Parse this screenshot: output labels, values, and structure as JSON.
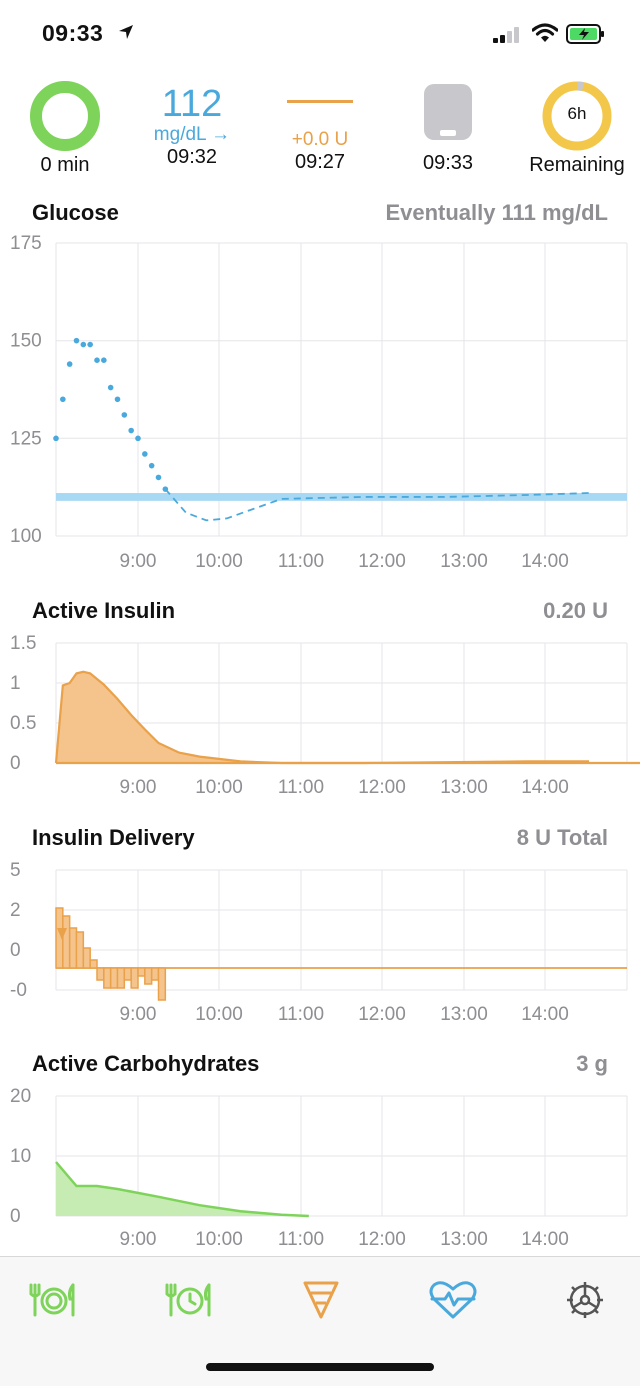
{
  "status": {
    "time": "09:33"
  },
  "hud": {
    "loop_label": "0 min",
    "glucose": "112",
    "glucose_unit": "mg/dL →",
    "glucose_time": "09:32",
    "basal_delta": "+0.0 U",
    "basal_time": "09:27",
    "pump_time": "09:33",
    "reservoir_label": "6h",
    "reservoir_caption": "Remaining"
  },
  "charts": {
    "glucose": {
      "title": "Glucose",
      "value": "Eventually 111 mg/dL"
    },
    "insulin": {
      "title": "Active Insulin",
      "value": "0.20 U"
    },
    "delivery": {
      "title": "Insulin Delivery",
      "value": "8 U Total"
    },
    "carbs": {
      "title": "Active Carbohydrates",
      "value": "3 g"
    }
  },
  "chart_data": [
    {
      "type": "scatter",
      "title": "Glucose",
      "x_ticks": [
        "9:00",
        "10:00",
        "11:00",
        "12:00",
        "13:00",
        "14:00"
      ],
      "y_ticks": [
        "175",
        "150",
        "125",
        "100"
      ],
      "ylim": [
        100,
        175
      ],
      "target_range": [
        109,
        111
      ],
      "series": [
        {
          "x": [
            "08:15",
            "08:20",
            "08:25",
            "08:30",
            "08:35",
            "08:40",
            "08:45",
            "08:50",
            "08:55",
            "09:00",
            "09:05",
            "09:10",
            "09:15",
            "09:20",
            "09:25",
            "09:30",
            "09:35"
          ],
          "values": [
            125,
            135,
            144,
            150,
            149,
            149,
            145,
            145,
            138,
            135,
            131,
            127,
            125,
            121,
            118,
            115,
            112
          ]
        },
        {
          "x": [
            "09:35",
            "09:50",
            "10:05",
            "10:20",
            "10:40",
            "11:00",
            "12:00",
            "13:00",
            "14:00",
            "14:45"
          ],
          "values": [
            112,
            106,
            104,
            104.5,
            107,
            109.5,
            110,
            110,
            110.5,
            111
          ]
        }
      ]
    },
    {
      "type": "area",
      "title": "Active Insulin",
      "x_ticks": [
        "9:00",
        "10:00",
        "11:00",
        "12:00",
        "13:00",
        "14:00"
      ],
      "y_ticks": [
        "1.5",
        "1",
        "0.5",
        "0"
      ],
      "ylim": [
        0,
        1.5
      ],
      "x": [
        "08:15",
        "08:20",
        "08:25",
        "08:30",
        "08:35",
        "08:40",
        "08:45",
        "08:50",
        "09:00",
        "09:10",
        "09:20",
        "09:30",
        "09:45",
        "10:00",
        "10:30",
        "11:00",
        "12:00",
        "13:00",
        "14:00",
        "14:45"
      ],
      "values": [
        0,
        0.97,
        1.0,
        1.12,
        1.14,
        1.12,
        1.05,
        0.98,
        0.8,
        0.6,
        0.42,
        0.25,
        0.13,
        0.08,
        0.02,
        0,
        0,
        0.01,
        0.02,
        0.02
      ]
    },
    {
      "type": "bar",
      "title": "Insulin Delivery",
      "x_ticks": [
        "9:00",
        "10:00",
        "11:00",
        "12:00",
        "13:00",
        "14:00"
      ],
      "y_ticks": [
        "5",
        "2",
        "0",
        "-0"
      ],
      "x": [
        "08:15",
        "08:20",
        "08:25",
        "08:30",
        "08:35",
        "08:40",
        "08:45",
        "08:50",
        "08:55",
        "09:00",
        "09:05",
        "09:10",
        "09:15",
        "09:20",
        "09:25",
        "09:30"
      ],
      "values": [
        1.5,
        1.3,
        1.0,
        0.9,
        0.5,
        0.2,
        -0.3,
        -0.5,
        -0.5,
        -0.5,
        -0.3,
        -0.5,
        -0.2,
        -0.4,
        -0.3,
        -0.8
      ]
    },
    {
      "type": "area",
      "title": "Active Carbohydrates",
      "x_ticks": [
        "9:00",
        "10:00",
        "11:00",
        "12:00",
        "13:00",
        "14:00"
      ],
      "y_ticks": [
        "20",
        "10",
        "0"
      ],
      "ylim": [
        0,
        20
      ],
      "x": [
        "08:15",
        "08:30",
        "08:45",
        "09:00",
        "09:30",
        "10:00",
        "10:30",
        "11:00",
        "11:20"
      ],
      "values": [
        9,
        5,
        5,
        4.5,
        3.2,
        1.8,
        0.8,
        0.2,
        0
      ]
    }
  ],
  "tabs": [
    {
      "name": "add-carbs-icon"
    },
    {
      "name": "add-carbs-absorption-icon"
    },
    {
      "name": "bolus-icon"
    },
    {
      "name": "health-heart-icon"
    },
    {
      "name": "settings-gear-icon"
    }
  ],
  "colors": {
    "glucose": "#4aa9dc",
    "insulin": "#e9a14a",
    "carbs": "#7ed35a",
    "ring": "#7ed35a",
    "target": "#a7d8f4",
    "reservoir": "#f3c84a"
  }
}
